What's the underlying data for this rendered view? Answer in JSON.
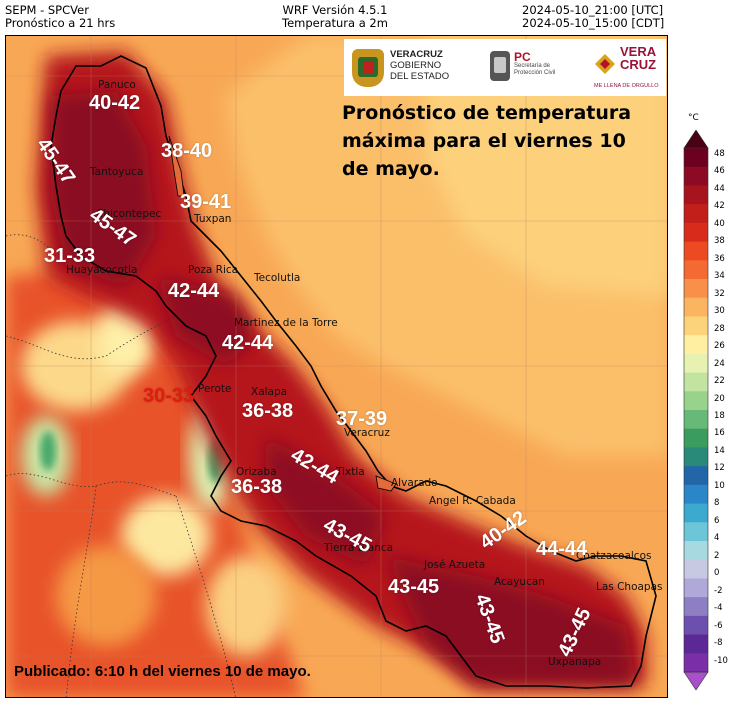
{
  "header": {
    "left_line1": "SEPM - SPCVer",
    "left_line2": "Pronóstico a 21 hrs",
    "center_line1": "WRF Versión 4.5.1",
    "center_line2": "Temperatura a 2m",
    "right_line1": "2024-05-10_21:00 [UTC]",
    "right_line2": "2024-05-10_15:00 [CDT]"
  },
  "logos": {
    "veracruz_gobierno": [
      "VERACRUZ",
      "GOBIERNO",
      "DEL ESTADO"
    ],
    "pc": [
      "PC",
      "Secretaría de",
      "Protección Civil"
    ],
    "vera_cruz": [
      "VERA",
      "CRUZ",
      "ME LLENA DE ORGULLO"
    ]
  },
  "title": "Pronóstico de temperatura máxima para el viernes 10 de mayo.",
  "publicado": "Publicado: 6:10 h del viernes 10 de mayo.",
  "cities": [
    "Panuco",
    "Tantoyuca",
    "Tuxpan",
    "Huayacocotla",
    "Poza Rica",
    "Tecolutla",
    "Martinez de la Torre",
    "Perote",
    "Xalapa",
    "Veracruz",
    "Orizaba",
    "Alvarado",
    "Angel R. Cabada",
    "Tierra Blanca",
    "José Azueta",
    "Acayucan",
    "Coatzacoalcos",
    "Las Choapas",
    "Uxpanapa",
    "Tixtla",
    "Chicontepec"
  ],
  "temperature_labels": [
    "40-42",
    "45-47",
    "38-40",
    "39-41",
    "45-47",
    "31-33",
    "42-44",
    "42-44",
    "30-33",
    "36-38",
    "37-39",
    "42-44",
    "36-38",
    "43-45",
    "40-42",
    "44-44",
    "43-45",
    "43-45",
    "43-45"
  ],
  "colorbar": {
    "unit": "°C",
    "ticks": [
      "48",
      "46",
      "44",
      "42",
      "40",
      "38",
      "36",
      "34",
      "32",
      "30",
      "28",
      "26",
      "24",
      "22",
      "20",
      "18",
      "16",
      "14",
      "12",
      "10",
      "8",
      "6",
      "4",
      "2",
      "0",
      "-2",
      "-4",
      "-6",
      "-8",
      "-10"
    ],
    "colors": [
      "#4a0015",
      "#6b0020",
      "#8c0a24",
      "#a8141e",
      "#c21e1a",
      "#d92b1b",
      "#ec4a22",
      "#f46a32",
      "#f8904a",
      "#fbb45f",
      "#fcd37a",
      "#fef0a0",
      "#e7f2b0",
      "#c2e4a0",
      "#98d28c",
      "#67b978",
      "#3a9c5e",
      "#2a8a7a",
      "#2366a8",
      "#2a86c6",
      "#3ba9d0",
      "#6cc6d8",
      "#a7dae0",
      "#c7c9e3",
      "#b0a8d8",
      "#8e7fc4",
      "#6d4fae",
      "#5b2896",
      "#7a2ea8",
      "#a84fc9"
    ]
  }
}
